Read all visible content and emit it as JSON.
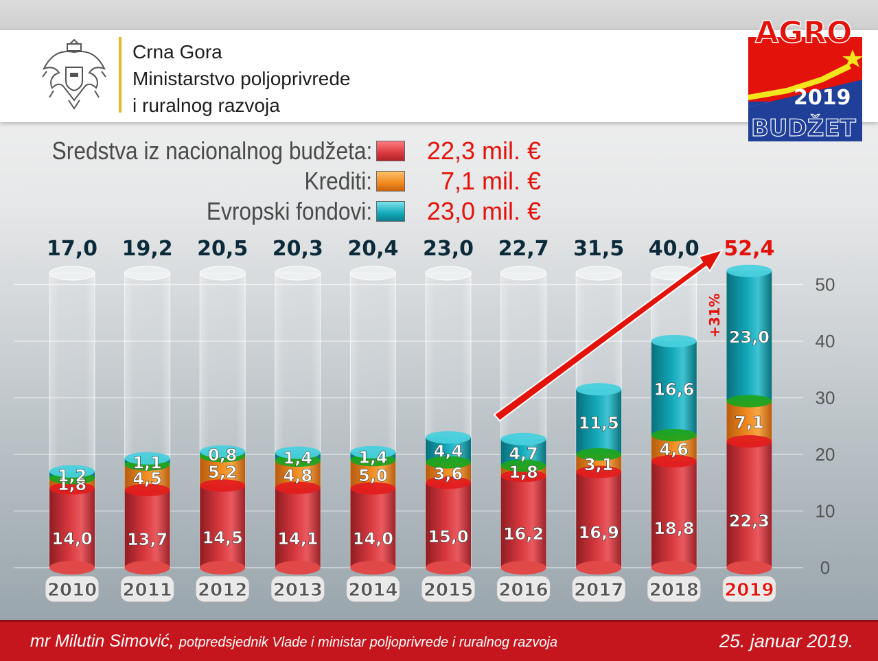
{
  "header": {
    "ministry_lines": [
      "Crna Gora",
      "Ministarstvo poljoprivrede",
      "i ruralnog razvoja"
    ]
  },
  "logo": {
    "line1": "AGRO",
    "line2": "2019",
    "line3": "BUDŽET"
  },
  "legend": {
    "items": [
      {
        "label": "Sredstva iz nacionalnog budžeta:",
        "value": "22,3 mil. €",
        "color": "#d9393f"
      },
      {
        "label": "Krediti:",
        "value": "7,1 mil. €",
        "color": "#f08a1e"
      },
      {
        "label": "Evropski fondovi:",
        "value": "23,0 mil. €",
        "color": "#12a8b9"
      }
    ]
  },
  "chart_data": {
    "type": "bar",
    "stacked": true,
    "categories": [
      "2010",
      "2011",
      "2012",
      "2013",
      "2014",
      "2015",
      "2016",
      "2017",
      "2018",
      "2019"
    ],
    "totals": [
      "17,0",
      "19,2",
      "20,5",
      "20,3",
      "20,4",
      "23,0",
      "22,7",
      "31,5",
      "40,0",
      "52,4"
    ],
    "total_values": [
      17.0,
      19.2,
      20.5,
      20.3,
      20.4,
      23.0,
      22.7,
      31.5,
      40.0,
      52.4
    ],
    "series": [
      {
        "values": [
          14.0,
          13.7,
          14.5,
          14.1,
          14.0,
          15.0,
          16.2,
          16.9,
          18.8,
          22.3
        ],
        "labels": [
          "14,0",
          "13,7",
          "14,5",
          "14,1",
          "14,0",
          "15,0",
          "16,2",
          "16,9",
          "18,8",
          "22,3"
        ],
        "color": "#d9393f"
      },
      {
        "values": [
          1.8,
          4.5,
          5.2,
          4.8,
          5.0,
          3.6,
          1.8,
          3.1,
          4.6,
          7.1
        ],
        "labels": [
          "1,8",
          "4,5",
          "5,2",
          "4,8",
          "5,0",
          "3,6",
          "1,8",
          "3,1",
          "4,6",
          "7,1"
        ],
        "color": "#f08a1e"
      },
      {
        "values": [
          1.2,
          1.1,
          0.8,
          1.4,
          1.4,
          4.4,
          4.7,
          11.5,
          16.6,
          23.0
        ],
        "labels": [
          "1,2",
          "1,1",
          "0,8",
          "1,4",
          "1,4",
          "4,4",
          "4,7",
          "11,5",
          "16,6",
          "23,0"
        ],
        "color": "#12a8b9"
      }
    ],
    "yaxis_ticks": [
      0,
      10,
      20,
      30,
      40,
      50
    ],
    "ylim": [
      0,
      55
    ],
    "annotation": "+31%",
    "highlight_color": "#e3120b",
    "total_color": "#0c2b3a",
    "grid": true
  },
  "footer": {
    "name": "mr Milutin Simović,",
    "role": "potpredsjednik Vlade i ministar poljoprivrede i ruralnog razvoja",
    "date": "25. januar 2019."
  }
}
